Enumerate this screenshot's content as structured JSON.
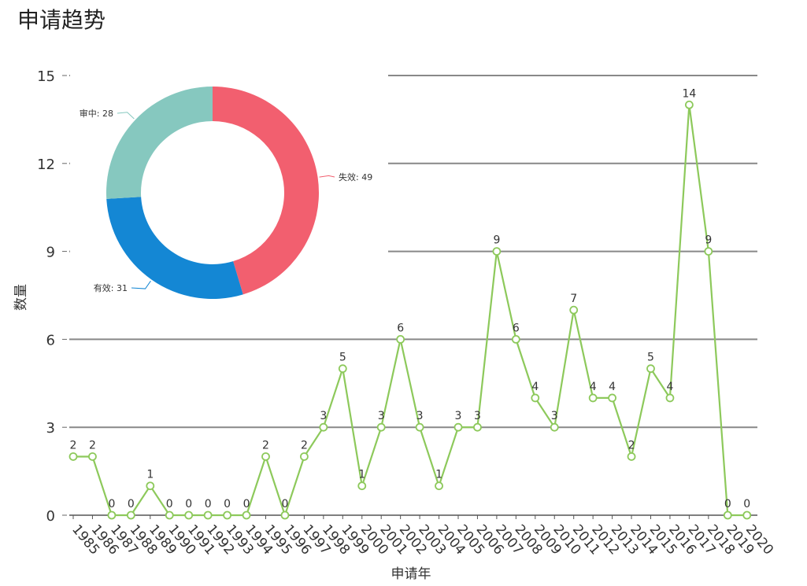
{
  "page": {
    "title": "申请趋势"
  },
  "colors": {
    "line": "#8dc95b",
    "grid": "#888888",
    "pie_invalid": "#f25f6f",
    "pie_valid": "#1487d4",
    "pie_pending": "#86c8bf"
  },
  "chart_data": [
    {
      "type": "line",
      "title": "",
      "xlabel": "申请年",
      "ylabel": "数量",
      "ylim": [
        0,
        15
      ],
      "yticks": [
        0,
        3,
        6,
        9,
        12,
        15
      ],
      "grid": true,
      "x": [
        "1985",
        "1986",
        "1987",
        "1988",
        "1989",
        "1990",
        "1991",
        "1992",
        "1993",
        "1994",
        "1995",
        "1996",
        "1997",
        "1998",
        "1999",
        "2000",
        "2001",
        "2002",
        "2003",
        "2004",
        "2005",
        "2006",
        "2007",
        "2008",
        "2009",
        "2010",
        "2011",
        "2012",
        "2013",
        "2014",
        "2015",
        "2016",
        "2017",
        "2018",
        "2019",
        "2020"
      ],
      "series": [
        {
          "values": [
            2,
            2,
            0,
            0,
            1,
            0,
            0,
            0,
            0,
            0,
            2,
            0,
            2,
            3,
            5,
            1,
            3,
            6,
            3,
            1,
            3,
            3,
            9,
            6,
            4,
            3,
            7,
            4,
            4,
            2,
            5,
            4,
            14,
            9,
            0,
            0
          ]
        }
      ],
      "data_labels": true
    },
    {
      "type": "pie",
      "donut": true,
      "slices": [
        {
          "label": "失效",
          "value": 49,
          "text": "失效: 49"
        },
        {
          "label": "有效",
          "value": 31,
          "text": "有效: 31"
        },
        {
          "label": "审中",
          "value": 28,
          "text": "审中: 28"
        }
      ]
    }
  ]
}
